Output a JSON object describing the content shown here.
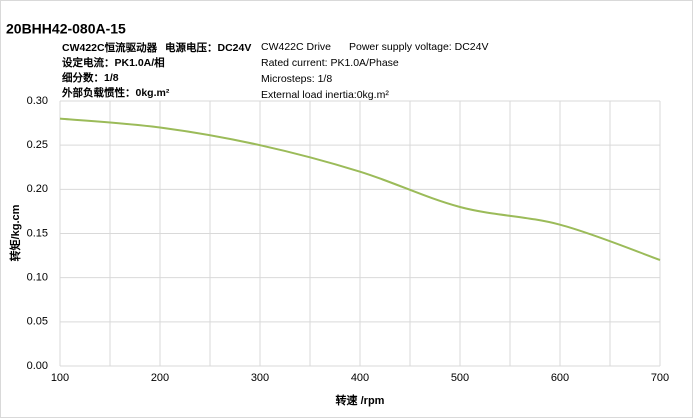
{
  "chart_data": {
    "type": "line",
    "title": "20BHH42-080A-15",
    "annotations_left": [
      "CW422C恒流驱动器",
      "电源电压：DC24V",
      "设定电流：PK1.0A/相",
      "细分数：1/8",
      "外部负载惯性：0kg.m²"
    ],
    "annotations_right": [
      "CW422C Drive",
      "Power supply voltage: DC24V",
      "Rated current: PK1.0A/Phase",
      "Microsteps: 1/8",
      "External load inertia:0kg.m²"
    ],
    "x_label": "转速 /rpm",
    "y_label": "转矩/kg.cm",
    "x": [
      100,
      200,
      300,
      400,
      500,
      600,
      700
    ],
    "series": [
      {
        "color": "#9bbb59",
        "values": [
          0.28,
          0.27,
          0.25,
          0.22,
          0.18,
          0.16,
          0.12
        ]
      }
    ],
    "xlim": [
      100,
      700
    ],
    "xticks": [
      100,
      200,
      300,
      400,
      500,
      600,
      700
    ],
    "xgrid": [
      100,
      150,
      200,
      250,
      300,
      350,
      400,
      450,
      500,
      550,
      600,
      650,
      700
    ],
    "ylim": [
      0,
      0.3
    ],
    "yticks": [
      {
        "value": 0,
        "label": "0.00"
      },
      {
        "value": 0.05,
        "label": "0.05"
      },
      {
        "value": 0.1,
        "label": "0.10"
      },
      {
        "value": 0.15,
        "label": "0.15"
      },
      {
        "value": 0.2,
        "label": "0.20"
      },
      {
        "value": 0.25,
        "label": "0.25"
      },
      {
        "value": 0.3,
        "label": "0.30"
      }
    ],
    "grid": true
  }
}
